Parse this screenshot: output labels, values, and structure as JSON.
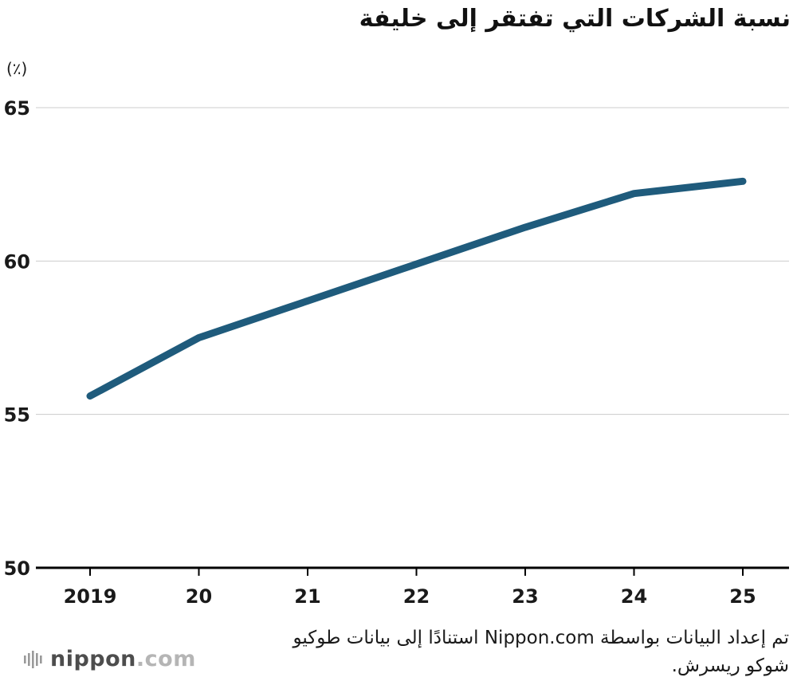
{
  "title": "نسبة الشركات التي تفتقر إلى خليفة",
  "unit_label": "(٪)",
  "footer": {
    "line1": "تم إعداد البيانات بواسطة Nippon.com استنادًا إلى بيانات طوكيو",
    "line2": "شوكو ريسرش."
  },
  "logo": {
    "name": "nippon",
    "tld": ".com"
  },
  "chart_data": {
    "type": "line",
    "x": [
      2019,
      2020,
      2021,
      2022,
      2023,
      2024,
      2025
    ],
    "x_tick_labels": [
      "2019",
      "20",
      "21",
      "22",
      "23",
      "24",
      "25"
    ],
    "values": [
      55.6,
      57.5,
      58.7,
      59.9,
      61.1,
      62.2,
      62.6
    ],
    "title": "نسبة الشركات التي تفتقر إلى خليفة",
    "ylabel": "(٪)",
    "ylim": [
      50,
      65
    ],
    "yticks": [
      50,
      55,
      60,
      65
    ],
    "grid": true,
    "legend": "none",
    "line_color": "#1f5b7c",
    "gridline_color": "#cccccc",
    "axis_color": "#000000"
  }
}
